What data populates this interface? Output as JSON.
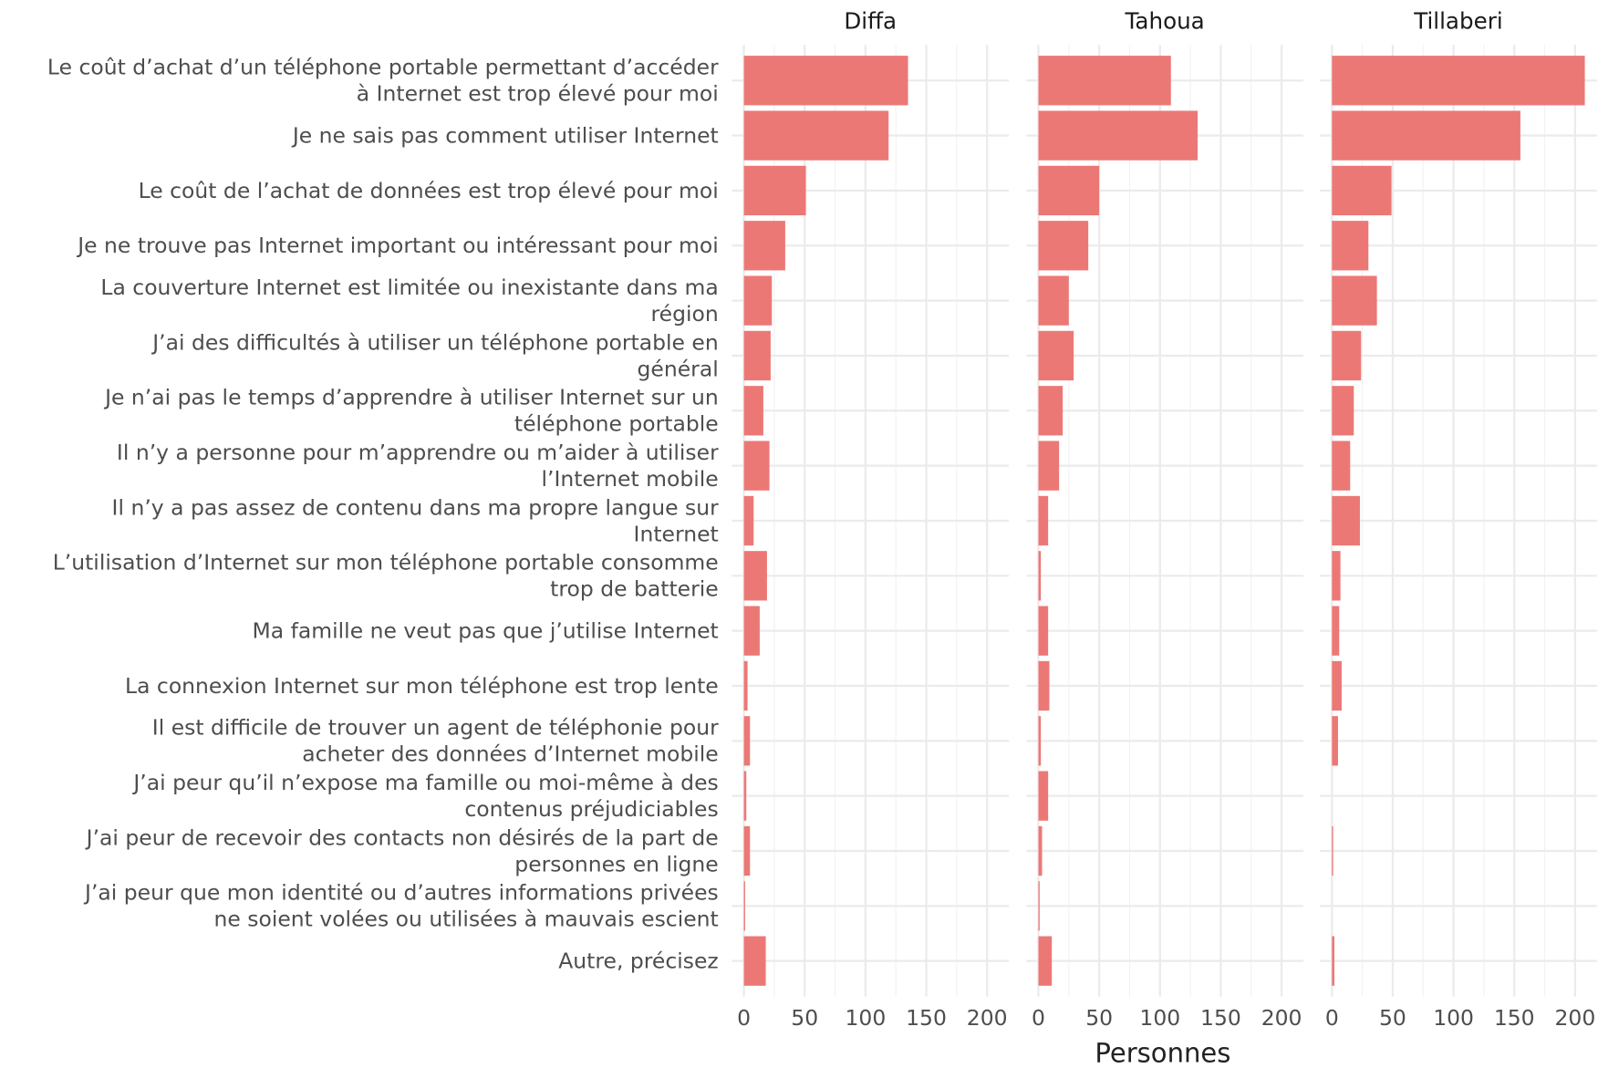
{
  "chart_data": {
    "type": "bar",
    "orientation": "horizontal",
    "facet": true,
    "x_label": "Personnes",
    "categories": [
      "Le coût d’achat d’un téléphone portable permettant d’accéder\nà Internet est trop élevé pour moi",
      "Je ne sais pas comment utiliser Internet",
      "Le coût de l’achat de données est trop élevé pour moi",
      "Je ne trouve pas Internet important ou intéressant pour moi",
      "La couverture Internet est limitée ou inexistante dans ma\nrégion",
      "J’ai des difficultés à utiliser un téléphone portable en\ngénéral",
      "Je n’ai pas le temps d’apprendre à utiliser Internet sur un\ntéléphone portable",
      "Il n’y a personne pour m’apprendre ou m’aider à utiliser\nl’Internet mobile",
      "Il n’y a pas assez de contenu dans ma propre langue sur\nInternet",
      "L’utilisation d’Internet sur mon téléphone portable consomme\ntrop de batterie",
      "Ma famille ne veut pas que j’utilise Internet",
      "La connexion Internet sur mon téléphone est trop lente",
      "Il est difficile de trouver un agent de téléphonie pour\nacheter des données d’Internet mobile",
      "J’ai peur qu’il n’expose ma famille ou moi-même à des\ncontenus préjudiciables",
      "J’ai peur de recevoir des contacts non désirés de la part de\npersonnes en ligne",
      "J’ai peur que mon identité ou d’autres informations privées\nne soient volées ou utilisées à mauvais escient",
      "Autre, précisez"
    ],
    "series": [
      {
        "name": "Diffa",
        "color": "#ec7876",
        "values": [
          135,
          119,
          51,
          34,
          23,
          22,
          16,
          21,
          8,
          19,
          13,
          3,
          5,
          2,
          5,
          1,
          18
        ]
      },
      {
        "name": "Tahoua",
        "color": "#ec7876",
        "values": [
          109,
          131,
          50,
          41,
          25,
          29,
          20,
          17,
          8,
          2,
          8,
          9,
          2,
          8,
          3,
          1,
          11
        ]
      },
      {
        "name": "Tillaberi",
        "color": "#ec7876",
        "values": [
          208,
          155,
          49,
          30,
          37,
          24,
          18,
          15,
          23,
          7,
          6,
          8,
          5,
          null,
          1,
          null,
          2
        ]
      }
    ],
    "xlim": [
      -10,
      218
    ],
    "xticks": [
      0,
      50,
      100,
      150,
      200
    ],
    "grid": true
  }
}
